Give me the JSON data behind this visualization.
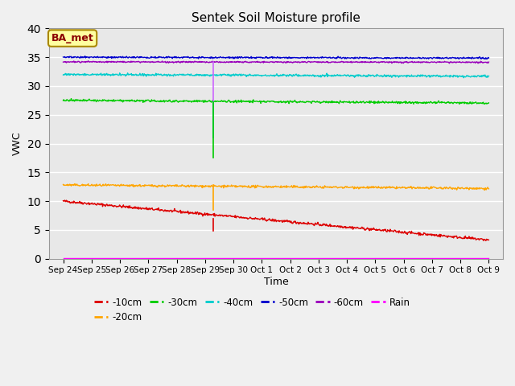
{
  "title": "Sentek Soil Moisture profile",
  "xlabel": "Time",
  "ylabel": "VWC",
  "ylim": [
    0,
    40
  ],
  "yticks": [
    0,
    5,
    10,
    15,
    20,
    25,
    30,
    35,
    40
  ],
  "background_color": "#e8e8e8",
  "grid_color": "#ffffff",
  "legend_label": "BA_met",
  "legend_box_color": "#ffffa0",
  "legend_text_color": "#8b0000",
  "spike_day": 5.3,
  "series": {
    "-10cm": {
      "color": "#dd0000",
      "base": 10.0,
      "trend": -0.45,
      "noise": 0.12,
      "spike_low": 4.8
    },
    "-20cm": {
      "color": "#ffa500",
      "base": 12.8,
      "trend": -0.04,
      "noise": 0.1,
      "spike_low": 8.5
    },
    "-30cm": {
      "color": "#00cc00",
      "base": 27.5,
      "trend": -0.03,
      "noise": 0.1,
      "spike_low": 17.5
    },
    "-40cm": {
      "color": "#00cccc",
      "base": 32.0,
      "trend": -0.02,
      "noise": 0.1,
      "spike_low": 21.0
    },
    "-50cm": {
      "color": "#0000cc",
      "base": 35.0,
      "trend": -0.01,
      "noise": 0.07,
      "spike_low": null
    },
    "-60cm": {
      "color": "#9900bb",
      "base": 34.2,
      "trend": -0.005,
      "noise": 0.06,
      "spike_low": null
    },
    "Rain": {
      "color": "#ff00ff",
      "base": 0.1,
      "trend": 0.0,
      "noise": 0.0,
      "spike_low": null
    }
  },
  "xtick_labels": [
    "Sep 24",
    "Sep 25",
    "Sep 26",
    "Sep 27",
    "Sep 28",
    "Sep 29",
    "Sep 30",
    "Oct 1",
    "Oct 2",
    "Oct 3",
    "Oct 4",
    "Oct 5",
    "Oct 6",
    "Oct 7",
    "Oct 8",
    "Oct 9"
  ],
  "xtick_positions": [
    0,
    1,
    2,
    3,
    4,
    5,
    6,
    7,
    8,
    9,
    10,
    11,
    12,
    13,
    14,
    15
  ],
  "spike_colors": {
    "-10cm": "#dd0000",
    "-20cm": "#ffa500",
    "-30cm": "#00cc00",
    "-40cm": "#00cccc",
    "Rain_spike": "#cc66ff"
  }
}
